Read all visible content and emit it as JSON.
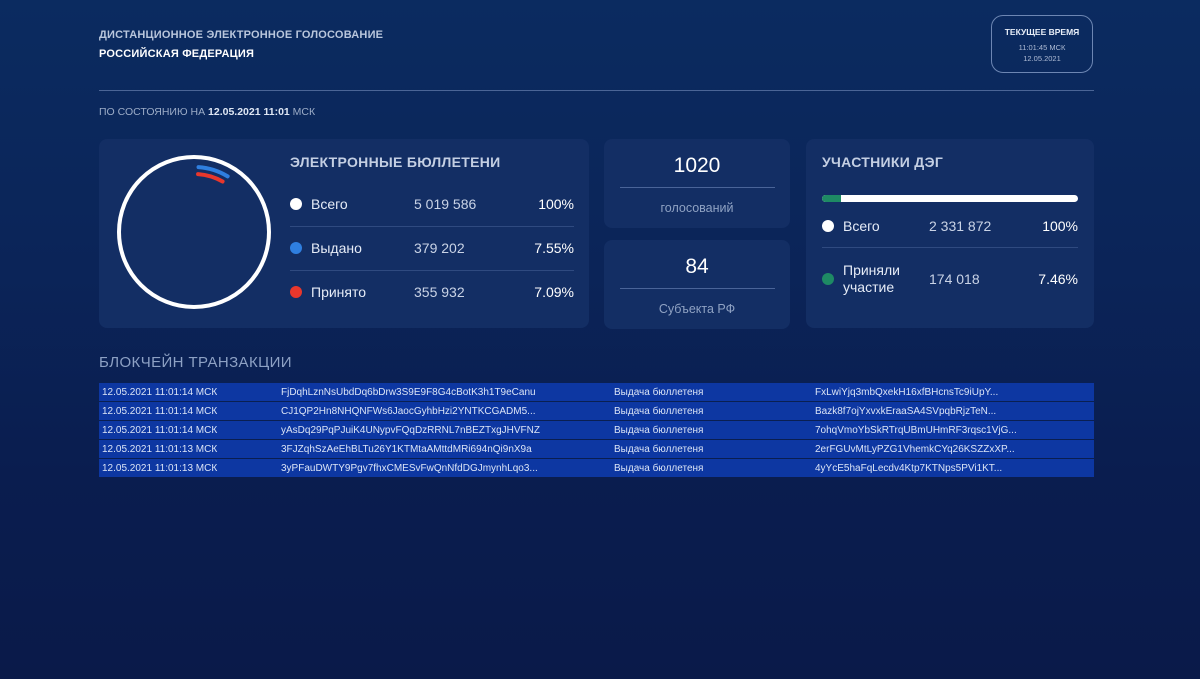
{
  "header": {
    "title": "ДИСТАНЦИОННОЕ ЭЛЕКТРОННОЕ ГОЛОСОВАНИЕ",
    "country": "РОССИЙСКАЯ ФЕДЕРАЦИЯ",
    "status_prefix": "ПО СОСТОЯНИЮ НА ",
    "status_datetime": "12.05.2021 11:01",
    "status_suffix": " МСК"
  },
  "clock": {
    "label": "ТЕКУЩЕЕ ВРЕМЯ",
    "time": "11:01:45 МСК",
    "date": "12.05.2021"
  },
  "ballots": {
    "title": "ЭЛЕКТРОННЫЕ БЮЛЛЕТЕНИ",
    "rows": [
      {
        "label": "Всего",
        "value": "5 019 586",
        "percent": "100%",
        "color": "#ffffff"
      },
      {
        "label": "Выдано",
        "value": "379 202",
        "percent": "7.55%",
        "color": "#2f7fe0"
      },
      {
        "label": "Принято",
        "value": "355 932",
        "percent": "7.09%",
        "color": "#e8372c"
      }
    ],
    "ring": {
      "issued_fraction": 0.0755,
      "accepted_fraction": 0.0709
    }
  },
  "votes": {
    "number": "1020",
    "caption": "голосований"
  },
  "subjects": {
    "number": "84",
    "caption": "Субъекта РФ"
  },
  "participants": {
    "title": "УЧАСТНИКИ ДЭГ",
    "progress_fraction": 0.0746,
    "rows": [
      {
        "label": "Всего",
        "value": "2 331 872",
        "percent": "100%",
        "color": "#ffffff"
      },
      {
        "label_line1": "Приняли",
        "label_line2": "участие",
        "value": "174 018",
        "percent": "7.46%",
        "color": "#1e8a64"
      }
    ]
  },
  "blockchain": {
    "title": "БЛОКЧЕЙН ТРАНЗАКЦИИ",
    "rows": [
      {
        "time": "12.05.2021 11:01:14 МСК",
        "hash": "FjDqhLznNsUbdDq6bDrw3S9E9F8G4cBotK3h1T9eCanu",
        "type": "Выдача бюллетеня",
        "key": "FxLwiYjq3mbQxekH16xfBHcnsTc9iUpY..."
      },
      {
        "time": "12.05.2021 11:01:14 МСК",
        "hash": "CJ1QP2Hn8NHQNFWs6JaocGyhbHzi2YNTKCGADM5...",
        "type": "Выдача бюллетеня",
        "key": "Bazk8f7ojYxvxkEraaSA4SVpqbRjzTeN..."
      },
      {
        "time": "12.05.2021 11:01:14 МСК",
        "hash": "yAsDq29PqPJuiK4UNypvFQqDzRRNL7nBEZTxgJHVFNZ",
        "type": "Выдача бюллетеня",
        "key": "7ohqVmoYbSkRTrqUBmUHmRF3rqsc1VjG..."
      },
      {
        "time": "12.05.2021 11:01:13 МСК",
        "hash": "3FJZqhSzAeEhBLTu26Y1KTMtaAMttdMRi694nQi9nX9a",
        "type": "Выдача бюллетеня",
        "key": "2erFGUvMtLyPZG1VhemkCYq26KSZZxXP..."
      },
      {
        "time": "12.05.2021 11:01:13 МСК",
        "hash": "3yPFauDWTY9Pgv7fhxCMESvFwQnNfdDGJmynhLqo3...",
        "type": "Выдача бюллетеня",
        "key": "4yYcE5haFqLecdv4Ktp7KTNps5PVi1KT..."
      }
    ]
  }
}
